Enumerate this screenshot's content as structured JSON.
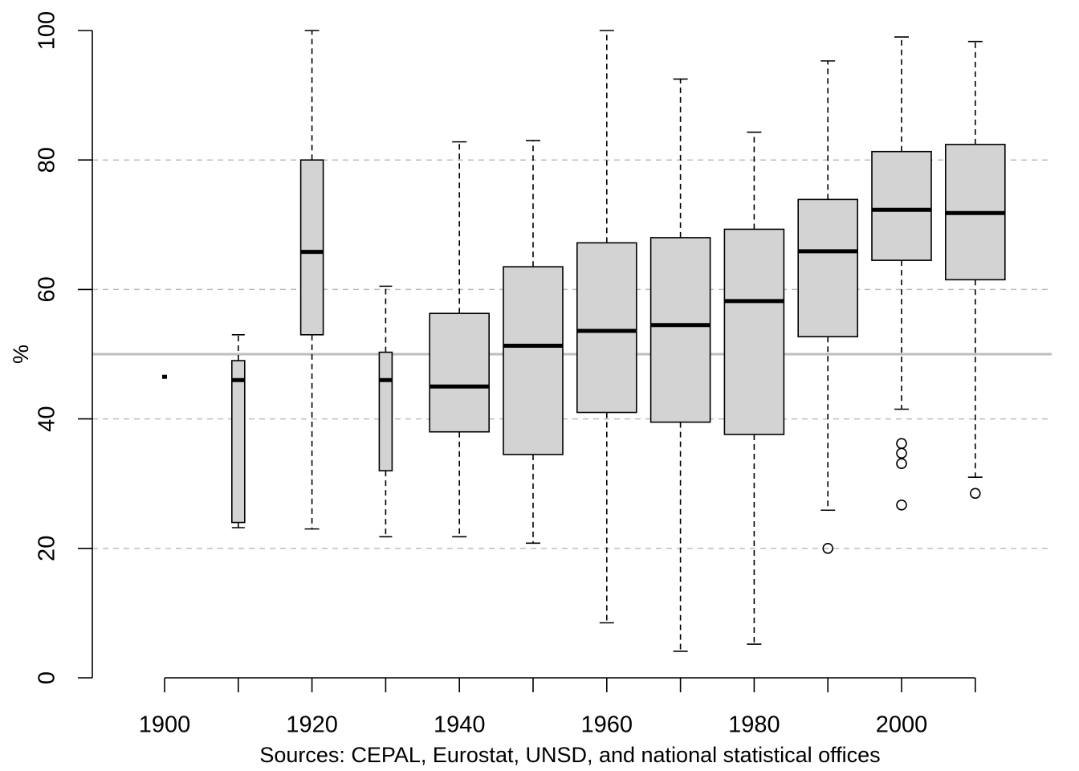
{
  "chart_data": {
    "type": "box",
    "title": "",
    "xlabel": "",
    "ylabel": "%",
    "ylim": [
      0,
      100
    ],
    "y_ticks": [
      0,
      20,
      40,
      60,
      80,
      100
    ],
    "x_ticks": [
      1900,
      1920,
      1940,
      1960,
      1980,
      2000
    ],
    "y_tick_labels": [
      "0",
      "20",
      "40",
      "60",
      "80",
      "100"
    ],
    "x_tick_labels": [
      "1900",
      "1920",
      "1940",
      "1960",
      "1980",
      "2000"
    ],
    "grid": {
      "horizontal_dashed_at": [
        20,
        40,
        60,
        80
      ]
    },
    "reference_line": 50,
    "box_color": "#d3d3d3",
    "reference_line_color": "#bebebe",
    "grid_color": "#bebebe",
    "categories": [
      1900,
      1910,
      1920,
      1930,
      1940,
      1950,
      1960,
      1970,
      1980,
      1990,
      2000,
      2010
    ],
    "boxes": [
      {
        "x": 1900,
        "min": 46.5,
        "q1": 46.5,
        "median": 46.5,
        "q3": 46.5,
        "max": 46.5,
        "outliers": []
      },
      {
        "x": 1910,
        "min": 23.2,
        "q1": 24,
        "median": 46,
        "q3": 49,
        "max": 53,
        "outliers": []
      },
      {
        "x": 1920,
        "min": 23,
        "q1": 53,
        "median": 65.8,
        "q3": 80,
        "max": 100,
        "outliers": []
      },
      {
        "x": 1930,
        "min": 21.8,
        "q1": 32,
        "median": 46,
        "q3": 50.3,
        "max": 60.5,
        "outliers": []
      },
      {
        "x": 1940,
        "min": 21.8,
        "q1": 38,
        "median": 45,
        "q3": 56.3,
        "max": 82.8,
        "outliers": []
      },
      {
        "x": 1950,
        "min": 20.8,
        "q1": 34.5,
        "median": 51.3,
        "q3": 63.5,
        "max": 83,
        "outliers": []
      },
      {
        "x": 1960,
        "min": 8.5,
        "q1": 41,
        "median": 53.6,
        "q3": 67.2,
        "max": 100,
        "outliers": []
      },
      {
        "x": 1970,
        "min": 4.1,
        "q1": 39.5,
        "median": 54.5,
        "q3": 68,
        "max": 92.5,
        "outliers": []
      },
      {
        "x": 1980,
        "min": 5.2,
        "q1": 37.6,
        "median": 58.2,
        "q3": 69.3,
        "max": 84.3,
        "outliers": []
      },
      {
        "x": 1990,
        "min": 25.9,
        "q1": 52.7,
        "median": 65.9,
        "q3": 73.9,
        "max": 95.3,
        "outliers": [
          20
        ]
      },
      {
        "x": 2000,
        "min": 41.5,
        "q1": 64.5,
        "median": 72.3,
        "q3": 81.3,
        "max": 99,
        "outliers": [
          36.2,
          34.7,
          33.1,
          26.7
        ]
      },
      {
        "x": 2010,
        "min": 31,
        "q1": 61.5,
        "median": 71.8,
        "q3": 82.4,
        "max": 98.3,
        "outliers": [
          28.5
        ]
      }
    ],
    "source_note": "Sources: CEPAL, Eurostat, UNSD, and national statistical offices"
  }
}
